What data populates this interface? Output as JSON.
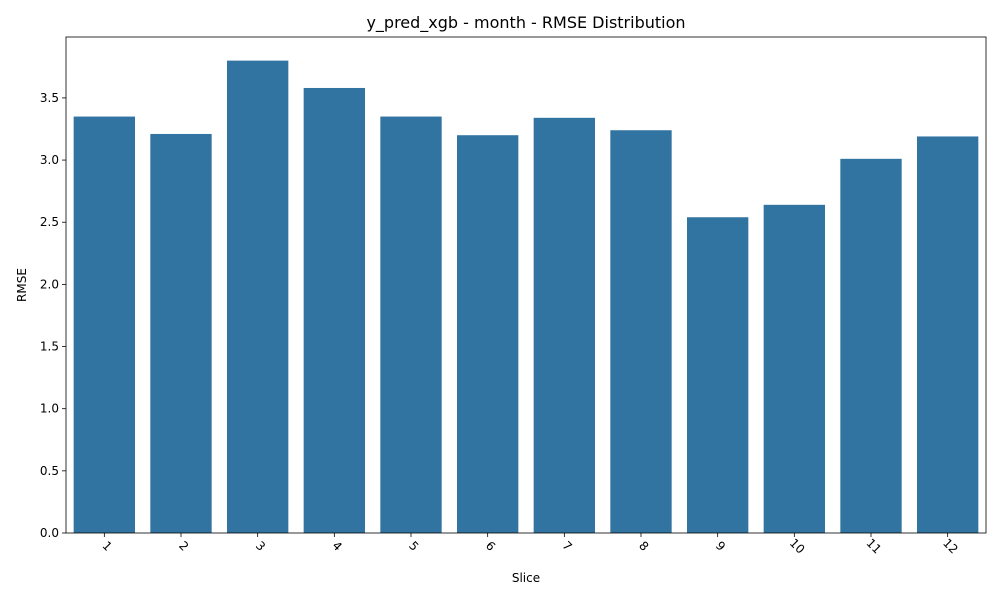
{
  "chart_data": {
    "type": "bar",
    "title": "y_pred_xgb - month - RMSE Distribution",
    "xlabel": "Slice",
    "ylabel": "RMSE",
    "categories": [
      "1",
      "2",
      "3",
      "4",
      "5",
      "6",
      "7",
      "8",
      "9",
      "10",
      "11",
      "12"
    ],
    "values": [
      3.35,
      3.21,
      3.8,
      3.58,
      3.35,
      3.2,
      3.34,
      3.24,
      2.54,
      2.64,
      3.01,
      3.19
    ],
    "ylim": [
      0,
      3.99
    ],
    "yticks": [
      0.0,
      0.5,
      1.0,
      1.5,
      2.0,
      2.5,
      3.0,
      3.5
    ],
    "ytick_labels": [
      "0.0",
      "0.5",
      "1.0",
      "1.5",
      "2.0",
      "2.5",
      "3.0",
      "3.5"
    ],
    "xtick_rotation": 45,
    "grid": false,
    "legend": "none",
    "colors": {
      "bar": "#3274a1",
      "axis": "#000000",
      "background": "#ffffff"
    }
  }
}
